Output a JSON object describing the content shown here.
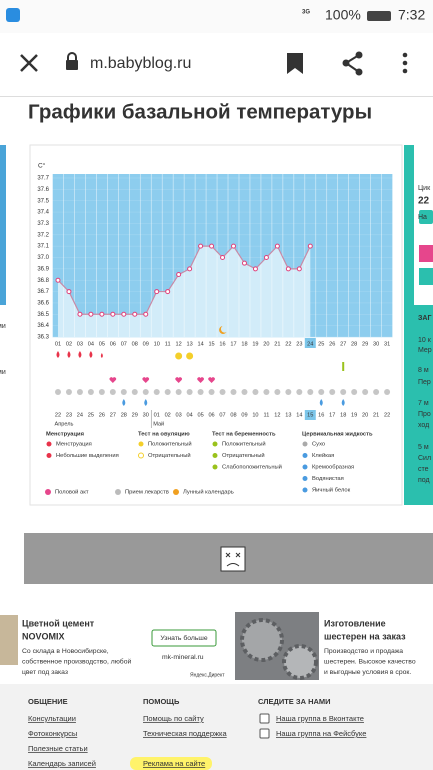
{
  "status_bar": {
    "network": "3G",
    "battery": "100%",
    "time": "7:32"
  },
  "browser": {
    "url": "m.babyblog.ru"
  },
  "page_title": "Графики базальной температуры",
  "chart_data": {
    "type": "line",
    "y_unit": "C°",
    "categories": [
      "01",
      "02",
      "03",
      "04",
      "05",
      "06",
      "07",
      "08",
      "09",
      "10",
      "11",
      "12",
      "13",
      "14",
      "15",
      "16",
      "17",
      "18",
      "19",
      "20",
      "21",
      "22",
      "23",
      "24",
      "25",
      "26",
      "27",
      "28",
      "29",
      "30",
      "31"
    ],
    "values": [
      36.8,
      36.7,
      36.5,
      36.5,
      36.5,
      36.5,
      36.5,
      36.5,
      36.5,
      36.7,
      36.7,
      36.85,
      36.9,
      37.1,
      37.1,
      37.0,
      37.1,
      36.95,
      36.9,
      37.0,
      37.1,
      36.9,
      36.9,
      37.1,
      null,
      null,
      null,
      null,
      null,
      null,
      null
    ],
    "ylim": [
      36.3,
      37.7
    ],
    "yticks": [
      36.3,
      36.4,
      36.5,
      36.6,
      36.7,
      36.8,
      36.9,
      {
        "value": 37,
        "label": "37.0"
      },
      37.1,
      37.2,
      37.3,
      37.4,
      37.5,
      37.6,
      37.7
    ],
    "line_color": "#c98aa6",
    "marker_color": "#e0407a",
    "fill_color": "#d2ecf9",
    "background_color": "#8dcdee",
    "cycle_dates": [
      "22",
      "23",
      "24",
      "25",
      "26",
      "27",
      "28",
      "29",
      "30",
      "01",
      "02",
      "03",
      "04",
      "05",
      "06",
      "07",
      "08",
      "09",
      "10",
      "11",
      "12",
      "13",
      "14",
      "15",
      "16",
      "17",
      "18",
      "19",
      "20",
      "21",
      "22"
    ],
    "cycle_date_colors": [
      "#333",
      "#333",
      "#333",
      "#e8334a",
      "#e8334a",
      "#333",
      "#333",
      "#333",
      "#333",
      "#e8334a",
      "#e8334a",
      "#e8334a",
      "#333",
      "#333",
      "#333",
      "#333",
      "#e8334a",
      "#e8334a",
      "#333",
      "#333",
      "#333",
      "#333",
      "#333",
      "#e8334a",
      "#e8334a",
      "#333",
      "#333",
      "#333",
      "#333",
      "#333",
      "#333"
    ],
    "months": [
      "Апрель",
      "Май"
    ],
    "legend": [
      {
        "title": "Менструация",
        "items": [
          "Менструация",
          "Небольшие выделения"
        ]
      },
      {
        "title": "Тест на овуляцию",
        "items": [
          "Положительный",
          "Отрицательный"
        ]
      },
      {
        "title": "Тест на беременность",
        "items": [
          "Положительный",
          "Отрицательный",
          "Слабоположительный"
        ]
      },
      {
        "title": "Цервикальная жидкость",
        "items": [
          "Сухо",
          "Клейкая",
          "Кремообразная",
          "Водянистая",
          "Яичный белок"
        ]
      }
    ],
    "legend_bottom": [
      "Половой акт",
      "Прием лекарств",
      "Лунный календарь"
    ]
  },
  "sidebar": [
    "Цик",
    "22",
    "На",
    "ЗАГ",
    "10 к",
    "Мер",
    "8 м",
    "Пер",
    "7 м",
    "Про",
    "ход",
    "5 м",
    "Сил",
    "сте",
    "под"
  ],
  "left_fragments": [
    "ми",
    "ми"
  ],
  "ads": [
    {
      "title": [
        "Цветной цемент",
        "NOVOMIX"
      ],
      "text": [
        "Со склада в Новосибирске,",
        "собственное производство, любой",
        "цвет под заказ"
      ],
      "button": "Узнать больше",
      "domain": "mk-mineral.ru",
      "source": "Яндекс.Директ"
    },
    {
      "title": [
        "Изготовление",
        "шестерен на заказ"
      ],
      "text": [
        "Производство и продажа",
        "шестерен. Высокое качество",
        "и выгодные условия в срок."
      ]
    }
  ],
  "footer": [
    {
      "title": "ОБЩЕНИЕ",
      "links": [
        "Консультации",
        "Фотоконкурсы",
        "Полезные статьи",
        "Календарь записей"
      ]
    },
    {
      "title": "ПОМОЩЬ",
      "links": [
        "Помощь по сайту",
        "Техническая поддержка",
        "Реклама на сайте"
      ]
    },
    {
      "title": "СЛЕДИТЕ ЗА НАМИ",
      "links": [
        "Наша группа в Вконтакте",
        "Наша группа на Фейсбуке"
      ]
    }
  ]
}
